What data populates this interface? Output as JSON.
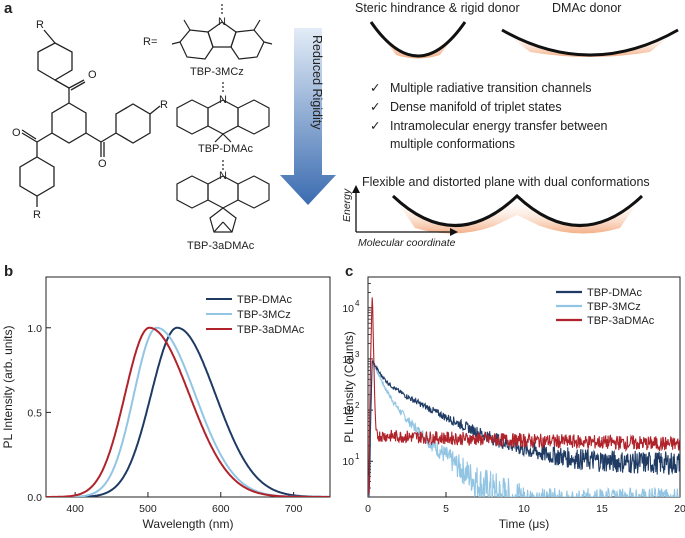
{
  "panel_a": {
    "label": "a",
    "r_label": "R=",
    "core_substituent_label": "R",
    "molecules": [
      "TBP-3MCz",
      "TBP-DMAc",
      "TBP-3aDMAc"
    ],
    "nitrogen_label": "N",
    "arrow_label": "Reduced Rigidity",
    "well_labels": [
      "Steric hindrance & rigid donor",
      "DMAc donor"
    ],
    "bullets": [
      "Multiple radiative transition channels",
      "Dense manifold of triplet states",
      "Intramolecular energy transfer between",
      "multiple conformations"
    ],
    "check_mark": "✓",
    "flexible_label": "Flexible and distorted plane with dual conformations",
    "energy_axis": "Energy",
    "coordinate_axis": "Molecular coordinate",
    "colors": {
      "arrow_top": "#dbe6f4",
      "arrow_bottom": "#3f6fb1",
      "well_glow": "#f2a273"
    }
  },
  "chart_data": [
    {
      "panel": "b",
      "type": "line",
      "xlabel": "Wavelength (nm)",
      "ylabel": "PL Intensity (arb. units)",
      "xlim": [
        360,
        750
      ],
      "ylim": [
        0,
        1.3
      ],
      "xticks": [
        "400",
        "500",
        "600",
        "700"
      ],
      "yticks": [
        "0.0",
        "0.5",
        "1.0"
      ],
      "legend_position": "top-right",
      "series": [
        {
          "name": "TBP-DMAc",
          "color": "#1f3b64",
          "peak": 540,
          "fwhm": 108,
          "onset": 458,
          "x": [
            420,
            450,
            470,
            490,
            510,
            525,
            540,
            560,
            580,
            600,
            620,
            650,
            680,
            710,
            750
          ],
          "values": [
            0.0,
            0.02,
            0.14,
            0.45,
            0.8,
            0.96,
            1.0,
            0.94,
            0.8,
            0.63,
            0.47,
            0.28,
            0.14,
            0.06,
            0.02
          ]
        },
        {
          "name": "TBP-3MCz",
          "color": "#92c5e3",
          "peak": 512,
          "fwhm": 108,
          "onset": 440,
          "x": [
            400,
            430,
            450,
            470,
            490,
            505,
            512,
            530,
            550,
            570,
            600,
            630,
            660,
            700,
            750
          ],
          "values": [
            0.0,
            0.02,
            0.16,
            0.52,
            0.9,
            0.99,
            1.0,
            0.92,
            0.76,
            0.6,
            0.38,
            0.22,
            0.12,
            0.04,
            0.01
          ]
        },
        {
          "name": "TBP-3aDMAc",
          "color": "#b1232b",
          "peak": 502,
          "fwhm": 112,
          "onset": 425,
          "x": [
            390,
            420,
            440,
            460,
            480,
            495,
            502,
            520,
            540,
            560,
            590,
            620,
            650,
            700,
            750
          ],
          "values": [
            0.0,
            0.03,
            0.18,
            0.52,
            0.88,
            0.99,
            1.0,
            0.93,
            0.78,
            0.62,
            0.41,
            0.25,
            0.14,
            0.04,
            0.01
          ]
        }
      ]
    },
    {
      "panel": "c",
      "type": "line",
      "xlabel": "Time (μs)",
      "ylabel": "PL Intensity (Counts)",
      "xlim": [
        0,
        20
      ],
      "ylim": [
        2,
        40000
      ],
      "yscale": "log",
      "xticks": [
        "0",
        "5",
        "10",
        "15",
        "20"
      ],
      "yticks": [
        {
          "base": "10",
          "exp": "1"
        },
        {
          "base": "10",
          "exp": "2"
        },
        {
          "base": "10",
          "exp": "3"
        },
        {
          "base": "10",
          "exp": "4"
        }
      ],
      "legend_position": "top-right",
      "series": [
        {
          "name": "TBP-DMAc",
          "color": "#1f3b64",
          "peak": 1100,
          "fast_amp": 500,
          "fast_tau": 0.45,
          "slow_amp": 420,
          "slow_tau": 2.5,
          "floor": 9
        },
        {
          "name": "TBP-3MCz",
          "color": "#92c5e3",
          "peak": 1000,
          "fast_amp": 700,
          "fast_tau": 0.5,
          "slow_amp": 230,
          "slow_tau": 1.6,
          "floor": 0.5
        },
        {
          "name": "TBP-3aDMAc",
          "color": "#b1232b",
          "peak": 20000,
          "fast_amp": 20000,
          "fast_tau": 0.03,
          "slow_amp": 30,
          "slow_tau": 60,
          "floor": 0
        }
      ]
    }
  ]
}
